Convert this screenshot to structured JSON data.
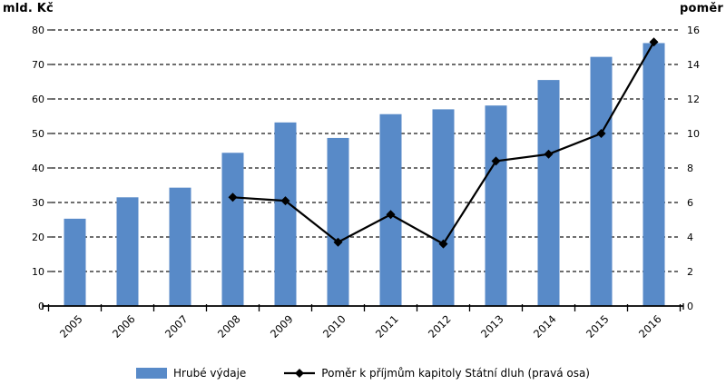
{
  "chart_data": {
    "type": "combo",
    "title": "",
    "categories": [
      "2005",
      "2006",
      "2007",
      "2008",
      "2009",
      "2010",
      "2011",
      "2012",
      "2013",
      "2014",
      "2015",
      "2016"
    ],
    "series": [
      {
        "name": "Hrubé výdaje",
        "type": "bar",
        "axis": "left",
        "color": "#588AC8",
        "values": [
          25.3,
          31.5,
          34.3,
          44.4,
          53.2,
          48.7,
          55.6,
          57.0,
          58.1,
          65.5,
          72.2,
          76.2
        ]
      },
      {
        "name": "Poměr k příjmům kapitoly Státní dluh (pravá osa)",
        "type": "line",
        "axis": "right",
        "color": "#000000",
        "marker": "diamond",
        "values": [
          null,
          null,
          null,
          6.3,
          6.1,
          3.7,
          5.3,
          3.6,
          8.4,
          8.8,
          10.0,
          15.3
        ]
      }
    ],
    "axes": {
      "left": {
        "title": "mld. Kč",
        "min": 0,
        "max": 80,
        "step": 10
      },
      "right": {
        "title": "poměr",
        "min": 0,
        "max": 16,
        "step": 2
      }
    },
    "grid": {
      "horizontal": "dashed",
      "vertical": "none",
      "color": "#3f3f3f"
    },
    "legend_position": "bottom"
  }
}
